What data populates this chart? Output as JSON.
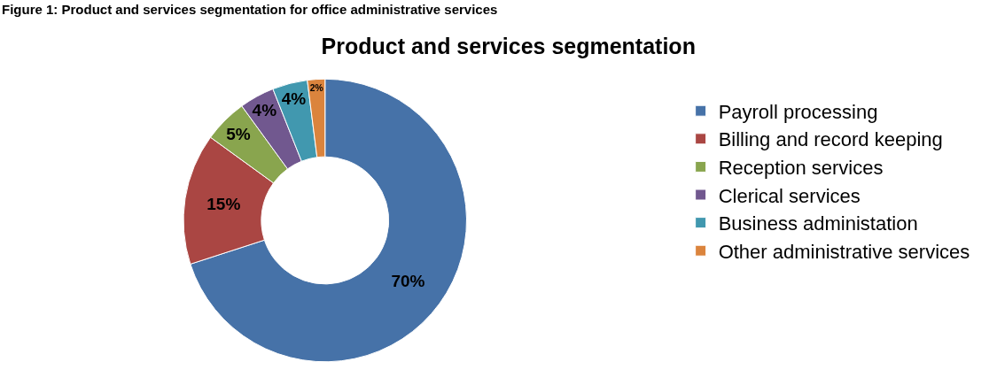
{
  "chart_data": {
    "type": "donut",
    "title": "Product and services segmentation",
    "annotations": [
      "Figure 1: Product and services segmentation for office administrative services"
    ],
    "categories": [
      "Payroll processing",
      "Billing and record keeping",
      "Reception services",
      "Clerical services",
      "Business administation",
      "Other administrative services"
    ],
    "values": [
      70,
      15,
      5,
      4,
      4,
      2
    ],
    "value_labels": [
      "70%",
      "15%",
      "5%",
      "4%",
      "4%",
      "2%"
    ],
    "colors": [
      "#4672a8",
      "#aa4643",
      "#89a54e",
      "#71588f",
      "#4198af",
      "#db843d"
    ],
    "legend": "right"
  }
}
